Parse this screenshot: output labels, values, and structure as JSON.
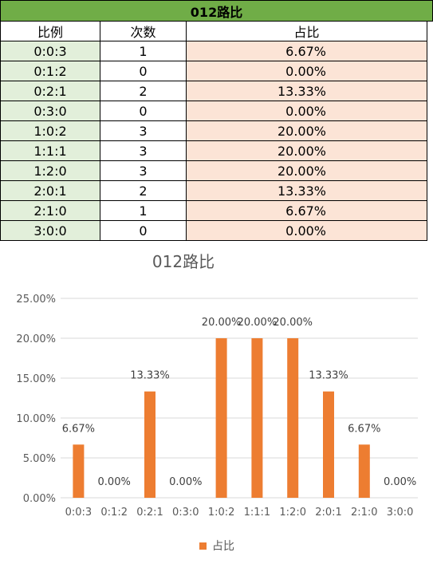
{
  "table": {
    "title": "012路比",
    "headers": [
      "比例",
      "次数",
      "占比"
    ],
    "rows": [
      {
        "ratio": "0:0:3",
        "count": "1",
        "share": "6.67%"
      },
      {
        "ratio": "0:1:2",
        "count": "0",
        "share": "0.00%"
      },
      {
        "ratio": "0:2:1",
        "count": "2",
        "share": "13.33%"
      },
      {
        "ratio": "0:3:0",
        "count": "0",
        "share": "0.00%"
      },
      {
        "ratio": "1:0:2",
        "count": "3",
        "share": "20.00%"
      },
      {
        "ratio": "1:1:1",
        "count": "3",
        "share": "20.00%"
      },
      {
        "ratio": "1:2:0",
        "count": "3",
        "share": "20.00%"
      },
      {
        "ratio": "2:0:1",
        "count": "2",
        "share": "13.33%"
      },
      {
        "ratio": "2:1:0",
        "count": "1",
        "share": "6.67%"
      },
      {
        "ratio": "3:0:0",
        "count": "0",
        "share": "0.00%"
      }
    ]
  },
  "chart_data": {
    "type": "bar",
    "title": "012路比",
    "categories": [
      "0:0:3",
      "0:1:2",
      "0:2:1",
      "0:3:0",
      "1:0:2",
      "1:1:1",
      "1:2:0",
      "2:0:1",
      "2:1:0",
      "3:0:0"
    ],
    "series": [
      {
        "name": "占比",
        "values": [
          6.67,
          0.0,
          13.33,
          0.0,
          20.0,
          20.0,
          20.0,
          13.33,
          6.67,
          0.0
        ]
      }
    ],
    "data_labels": [
      "6.67%",
      "0.00%",
      "13.33%",
      "0.00%",
      "20.00%",
      "20.00%",
      "20.00%",
      "13.33%",
      "6.67%",
      "0.00%"
    ],
    "yticks": [
      "0.00%",
      "5.00%",
      "10.00%",
      "15.00%",
      "20.00%",
      "25.00%"
    ],
    "ylim": [
      0,
      25
    ],
    "grid": true,
    "legend_position": "bottom",
    "colors": {
      "bar": "#ed7d31",
      "grid": "#d9d9d9",
      "text": "#595959"
    }
  }
}
